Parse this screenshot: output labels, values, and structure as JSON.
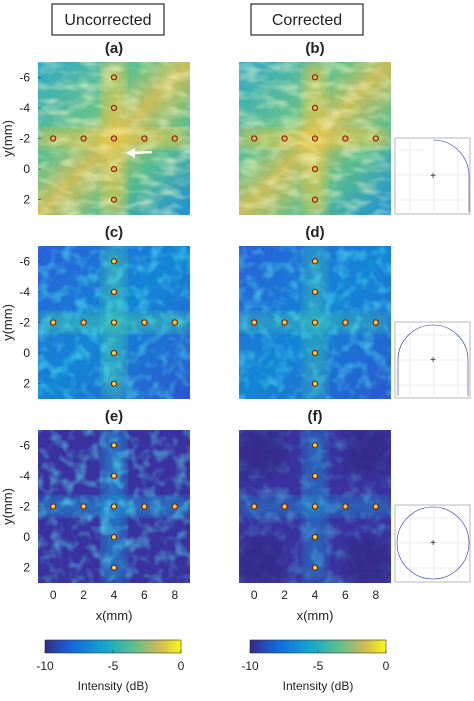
{
  "headers": [
    "Uncorrected",
    "Corrected"
  ],
  "panel_labels": [
    "(a)",
    "(b)",
    "(c)",
    "(d)",
    "(e)",
    "(f)"
  ],
  "axes": {
    "xlabel": "x(mm)",
    "ylabel": "y(mm)",
    "xlim": [
      -1,
      9
    ],
    "ylim": [
      -7,
      3
    ],
    "xticks": [
      0,
      2,
      4,
      6,
      8
    ],
    "yticks": [
      -6,
      -4,
      -2,
      0,
      2
    ]
  },
  "points": [
    [
      0,
      -2
    ],
    [
      2,
      -2
    ],
    [
      4,
      -2
    ],
    [
      6,
      -2
    ],
    [
      8,
      -2
    ],
    [
      4,
      -6
    ],
    [
      4,
      -4
    ],
    [
      4,
      0
    ],
    [
      4,
      2
    ]
  ],
  "colorbar": {
    "label": "Intensity (dB)",
    "lim": [
      -10,
      0
    ],
    "ticks": [
      -10,
      -5,
      0
    ]
  }
}
